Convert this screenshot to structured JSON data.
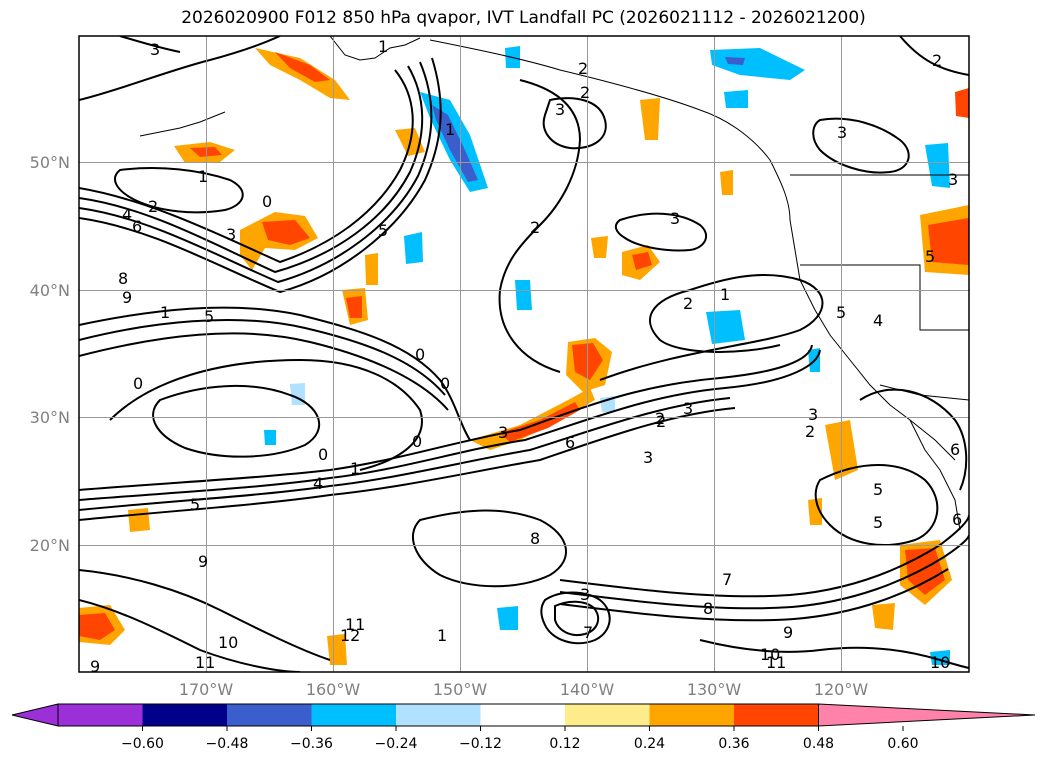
{
  "title": "2026020900 F012 850 hPa qvapor, IVT Landfall PC (2026021112 - 2026021200)",
  "lat_labels": [
    "50°N",
    "40°N",
    "30°N",
    "20°N"
  ],
  "lon_labels": [
    "170°W",
    "160°W",
    "150°W",
    "140°W",
    "130°W",
    "120°W"
  ],
  "colorbar": {
    "ticks": [
      "−0.60",
      "−0.48",
      "−0.36",
      "−0.24",
      "−0.12",
      "0.12",
      "0.24",
      "0.36",
      "0.48",
      "0.60"
    ],
    "colors": [
      "#9b30d9",
      "#00008b",
      "#3a5fcd",
      "#00bfff",
      "#b0e2ff",
      "#ffffff",
      "#ffec8b",
      "#ffa500",
      "#ff4500",
      "#b22222",
      "#ff82ab"
    ]
  },
  "contour_labels": [
    "3",
    "1",
    "2",
    "3",
    "2",
    "3",
    "1",
    "0",
    "2",
    "4",
    "6",
    "3",
    "5",
    "8",
    "9",
    "1",
    "5",
    "0",
    "2",
    "1",
    "3",
    "2",
    "3",
    "0",
    "0",
    "0",
    "1",
    "4",
    "2",
    "5",
    "8",
    "7",
    "9",
    "6",
    "8",
    "7",
    "11",
    "12",
    "10",
    "11",
    "9",
    "10",
    "11",
    "3",
    "2",
    "3",
    "3",
    "5",
    "5",
    "5",
    "4",
    "5",
    "6",
    "6",
    "1",
    "2",
    "3",
    "1",
    "0",
    "2",
    "3",
    "9",
    "10"
  ]
}
